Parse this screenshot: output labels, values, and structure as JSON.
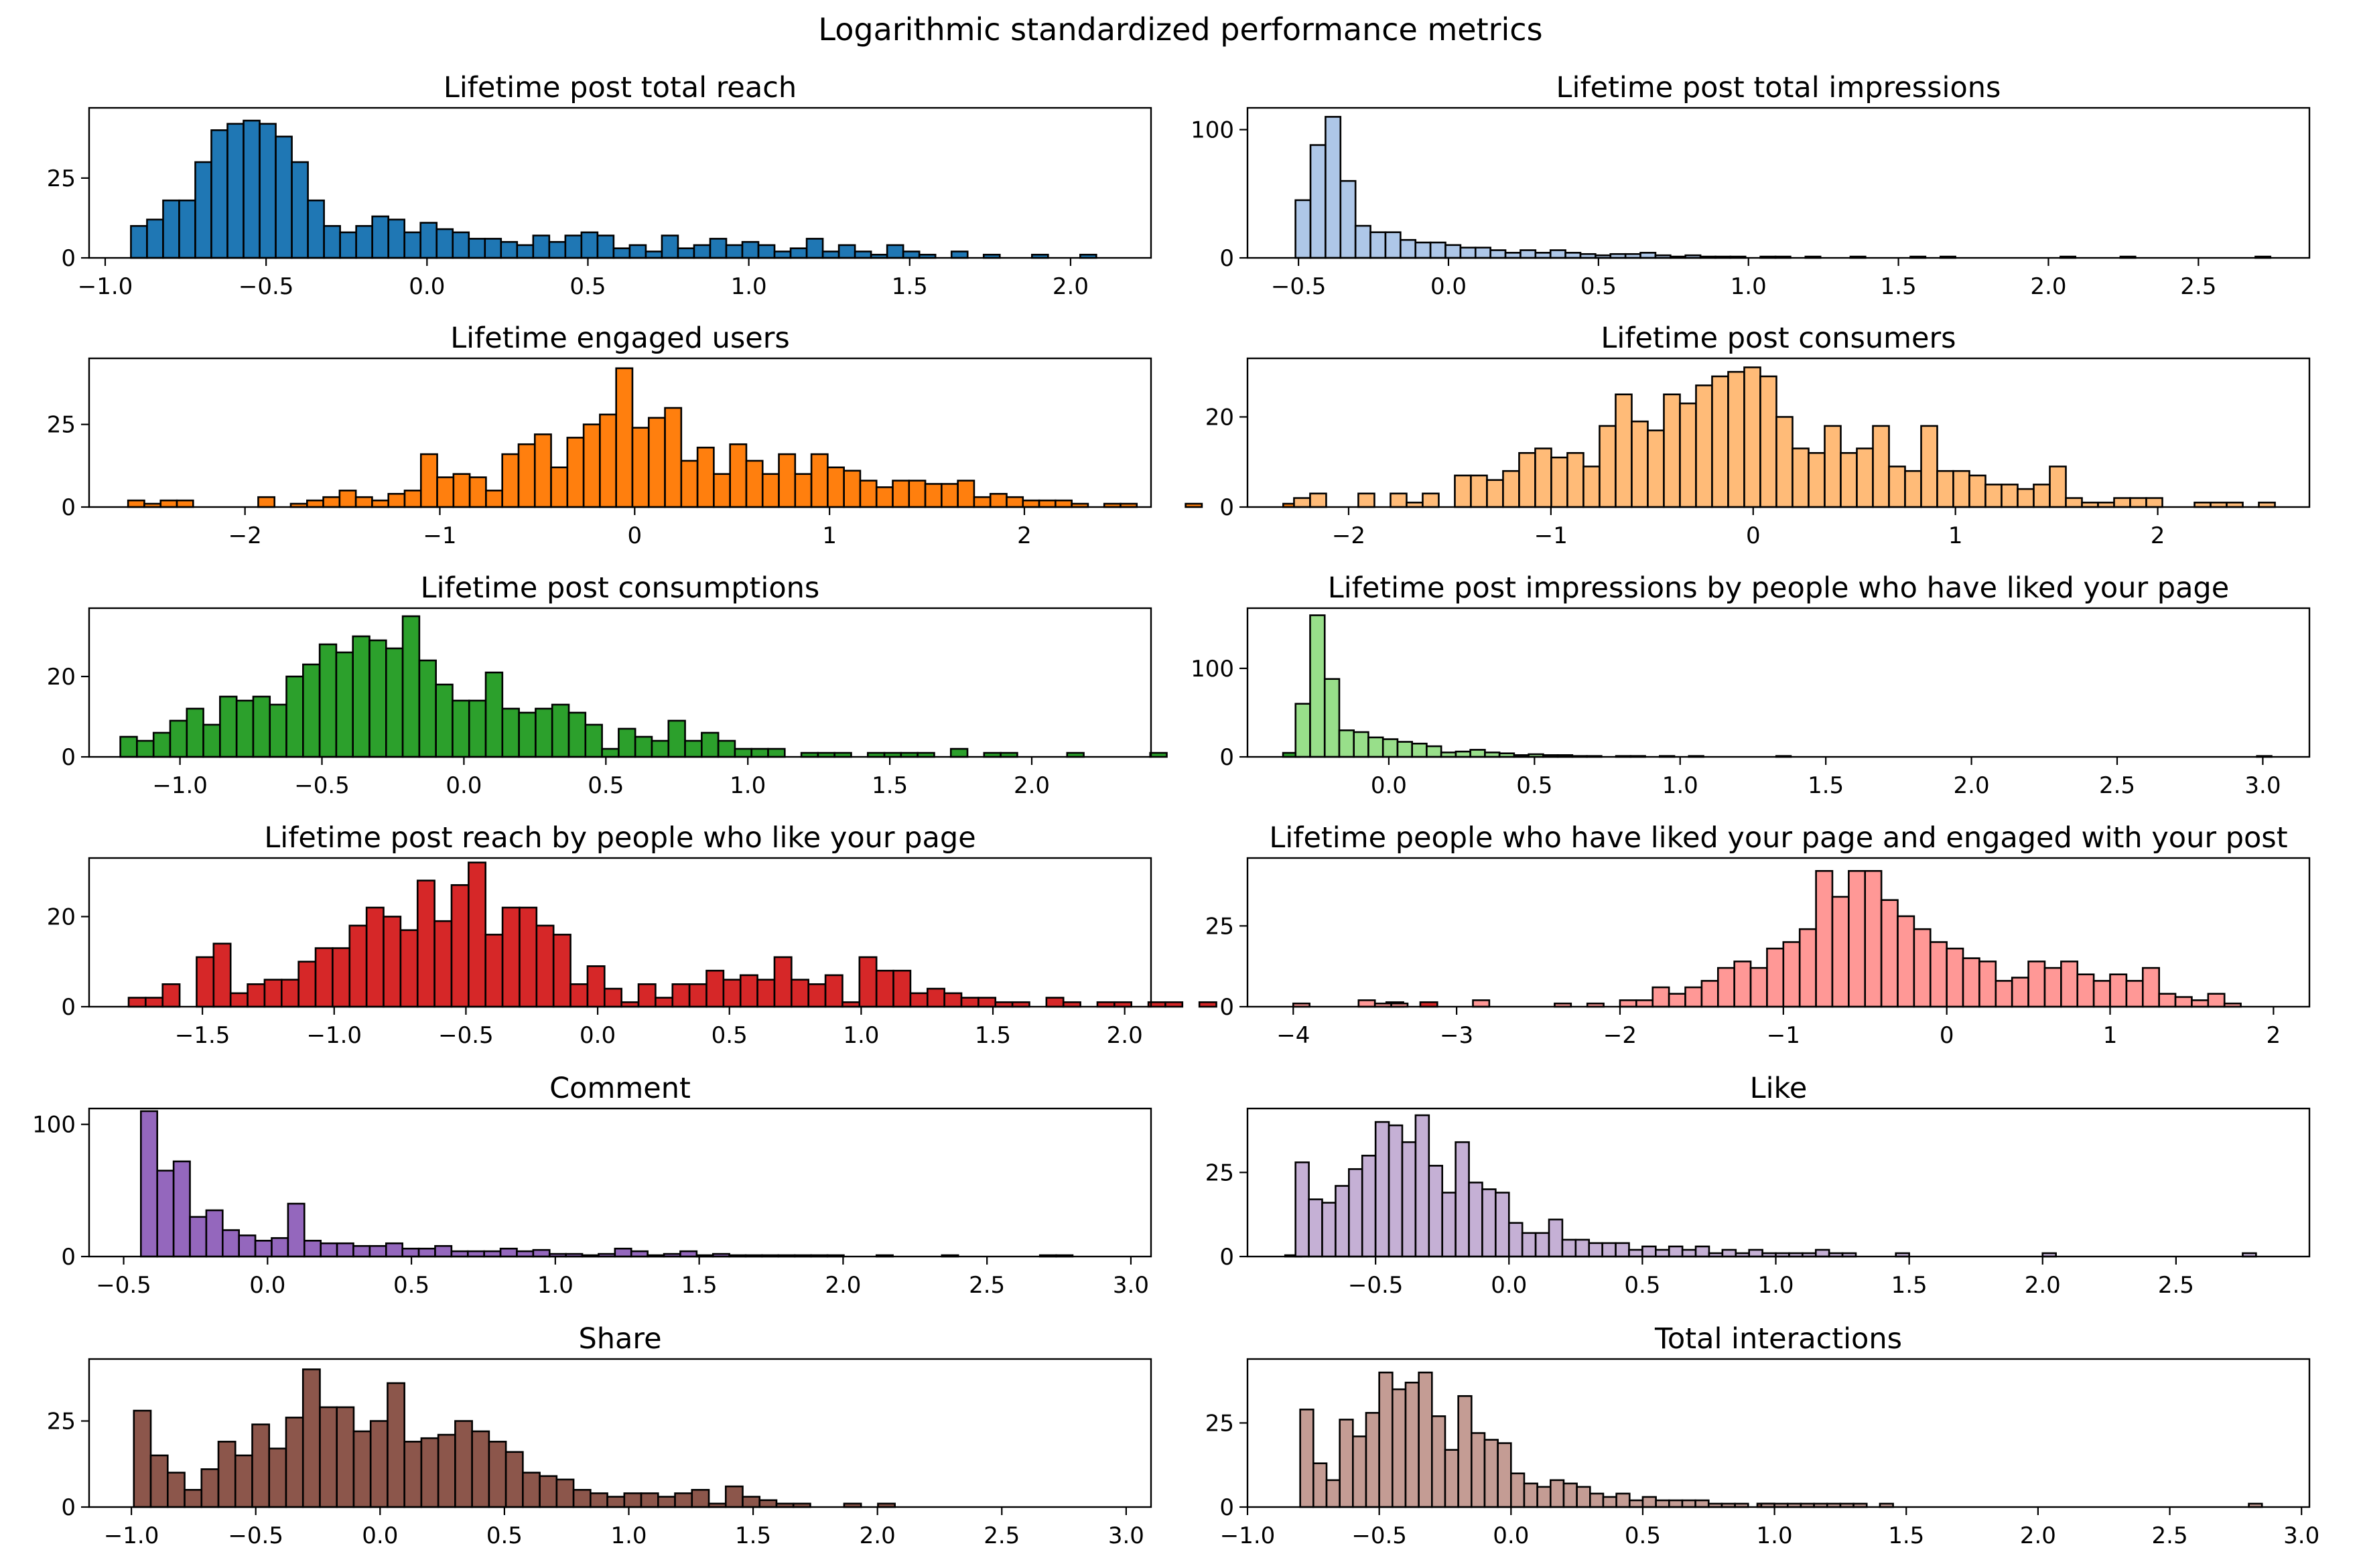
{
  "figure_title": "Logarithmic standardized performance metrics",
  "chart_data": [
    {
      "type": "bar",
      "title": "Lifetime post total reach",
      "color": "#1f77b4",
      "xlim": [
        -1.05,
        2.25
      ],
      "ylim": [
        0,
        47
      ],
      "xticks": [
        -1.0,
        -0.5,
        0.0,
        0.5,
        1.0,
        1.5,
        2.0
      ],
      "xtick_labels": [
        "−1.0",
        "−0.5",
        "0.0",
        "0.5",
        "1.0",
        "1.5",
        "2.0"
      ],
      "yticks": [
        0,
        25
      ],
      "ytick_labels": [
        "0",
        "25"
      ],
      "bin_start": -0.92,
      "bin_width": 0.05,
      "values": [
        10,
        12,
        18,
        18,
        30,
        40,
        42,
        43,
        42,
        38,
        30,
        18,
        10,
        8,
        10,
        13,
        12,
        8,
        11,
        9,
        8,
        6,
        6,
        5,
        4,
        7,
        5,
        7,
        8,
        7,
        3,
        4,
        2,
        7,
        3,
        4,
        6,
        4,
        5,
        4,
        2,
        3,
        6,
        2,
        4,
        2,
        1,
        4,
        2,
        1,
        0,
        2,
        0,
        1,
        0,
        0,
        1,
        0,
        0,
        1
      ]
    },
    {
      "type": "bar",
      "title": "Lifetime post total impressions",
      "color": "#aec7e8",
      "xlim": [
        -0.67,
        2.87
      ],
      "ylim": [
        0,
        117
      ],
      "xticks": [
        -0.5,
        0.0,
        0.5,
        1.0,
        1.5,
        2.0,
        2.5
      ],
      "xtick_labels": [
        "−0.5",
        "0.0",
        "0.5",
        "1.0",
        "1.5",
        "2.0",
        "2.5"
      ],
      "yticks": [
        0,
        100
      ],
      "ytick_labels": [
        "0",
        "100"
      ],
      "bin_start": -0.51,
      "bin_width": 0.05,
      "values": [
        45,
        88,
        110,
        60,
        25,
        20,
        20,
        14,
        12,
        12,
        10,
        8,
        8,
        6,
        4,
        6,
        4,
        6,
        4,
        3,
        2,
        3,
        3,
        4,
        2,
        1,
        2,
        1,
        1,
        1,
        0,
        1,
        1,
        0,
        1,
        0,
        0,
        1,
        0,
        0,
        0,
        1,
        0,
        1,
        0,
        0,
        0,
        0,
        0,
        0,
        0,
        1,
        0,
        0,
        0,
        1,
        0,
        0,
        0,
        0,
        0,
        0,
        0,
        0,
        1
      ]
    },
    {
      "type": "bar",
      "title": "Lifetime engaged users",
      "color": "#ff7f0e",
      "xlim": [
        -2.8,
        2.65
      ],
      "ylim": [
        0,
        45
      ],
      "xticks": [
        -2,
        -1,
        0,
        1,
        2
      ],
      "xtick_labels": [
        "−2",
        "−1",
        "0",
        "1",
        "2"
      ],
      "yticks": [
        0,
        25
      ],
      "ytick_labels": [
        "0",
        "25"
      ],
      "bin_start": -2.6,
      "bin_width": 0.0835,
      "values": [
        2,
        1,
        2,
        2,
        0,
        0,
        0,
        0,
        3,
        0,
        1,
        2,
        3,
        5,
        3,
        2,
        4,
        5,
        16,
        9,
        10,
        9,
        5,
        16,
        19,
        22,
        12,
        21,
        25,
        28,
        42,
        24,
        27,
        30,
        14,
        18,
        10,
        19,
        14,
        10,
        16,
        10,
        16,
        12,
        11,
        8,
        6,
        8,
        8,
        7,
        7,
        8,
        3,
        4,
        3,
        2,
        2,
        2,
        1,
        0,
        1,
        1,
        0,
        0,
        0,
        1,
        0,
        0,
        0,
        0,
        0,
        1
      ]
    },
    {
      "type": "bar",
      "title": "Lifetime post consumers",
      "color": "#ffbb78",
      "xlim": [
        -2.5,
        2.75
      ],
      "ylim": [
        0,
        33
      ],
      "xticks": [
        -2,
        -1,
        0,
        1,
        2
      ],
      "xtick_labels": [
        "−2",
        "−1",
        "0",
        "1",
        "2"
      ],
      "yticks": [
        0,
        20
      ],
      "ytick_labels": [
        "0",
        "20"
      ],
      "bin_start": -2.27,
      "bin_width": 0.0795,
      "values": [
        2,
        3,
        0,
        0,
        3,
        0,
        3,
        1,
        3,
        0,
        7,
        7,
        6,
        8,
        12,
        13,
        11,
        12,
        9,
        18,
        25,
        19,
        17,
        25,
        23,
        27,
        29,
        30,
        31,
        29,
        20,
        13,
        12,
        18,
        12,
        13,
        18,
        9,
        8,
        18,
        8,
        8,
        7,
        5,
        5,
        4,
        5,
        9,
        2,
        1,
        1,
        2,
        2,
        2,
        0,
        0,
        1,
        1,
        1,
        0,
        1,
        0,
        0,
        0,
        0,
        0,
        0,
        0,
        0,
        0,
        0,
        0,
        0,
        0,
        0,
        0,
        0,
        0,
        0,
        0,
        0,
        0,
        1
      ]
    },
    {
      "type": "bar",
      "title": "Lifetime post consumptions",
      "color": "#2ca02c",
      "xlim": [
        -1.32,
        2.42
      ],
      "ylim": [
        0,
        37
      ],
      "xticks": [
        -1.0,
        -0.5,
        0.0,
        0.5,
        1.0,
        1.5,
        2.0
      ],
      "xtick_labels": [
        "−1.0",
        "−0.5",
        "0.0",
        "0.5",
        "1.0",
        "1.5",
        "2.0"
      ],
      "yticks": [
        0,
        20
      ],
      "ytick_labels": [
        "0",
        "20"
      ],
      "bin_start": -1.21,
      "bin_width": 0.0585,
      "values": [
        5,
        4,
        6,
        9,
        12,
        8,
        15,
        14,
        15,
        13,
        20,
        23,
        28,
        26,
        30,
        29,
        27,
        35,
        24,
        18,
        14,
        14,
        21,
        12,
        11,
        12,
        13,
        11,
        8,
        2,
        7,
        5,
        4,
        9,
        4,
        6,
        4,
        2,
        2,
        2,
        0,
        1,
        1,
        1,
        0,
        1,
        1,
        1,
        1,
        0,
        2,
        0,
        1,
        1,
        0,
        0,
        0,
        1,
        0,
        0,
        0,
        0,
        1,
        0,
        0,
        0,
        0,
        0,
        0,
        0,
        1
      ]
    },
    {
      "type": "bar",
      "title": "Lifetime post impressions by people who have liked your page",
      "color": "#98df8a",
      "xlim": [
        -0.485,
        3.16
      ],
      "ylim": [
        0,
        168
      ],
      "xticks": [
        0.0,
        0.5,
        1.0,
        1.5,
        2.0,
        2.5,
        3.0
      ],
      "xtick_labels": [
        "0.0",
        "0.5",
        "1.0",
        "1.5",
        "2.0",
        "2.5",
        "3.0"
      ],
      "yticks": [
        0,
        100
      ],
      "ytick_labels": [
        "0",
        "100"
      ],
      "bin_start": -0.32,
      "bin_width": 0.05,
      "values": [
        60,
        160,
        88,
        30,
        28,
        22,
        20,
        17,
        15,
        12,
        5,
        6,
        8,
        5,
        4,
        2,
        3,
        2,
        2,
        1,
        1,
        0,
        1,
        1,
        0,
        1,
        0,
        1,
        0,
        0,
        0,
        0,
        0,
        1,
        0,
        0,
        0,
        0,
        0,
        0,
        0,
        0,
        0,
        0,
        0,
        0,
        0,
        0,
        0,
        0,
        0,
        0,
        0,
        0,
        0,
        0,
        0,
        0,
        0,
        0,
        0,
        0,
        0,
        0,
        0,
        0,
        1
      ]
    },
    {
      "type": "bar",
      "title": "Lifetime post reach by people who like your page",
      "color": "#d62728",
      "xlim": [
        -1.93,
        2.1
      ],
      "ylim": [
        0,
        33
      ],
      "xticks": [
        -1.5,
        -1.0,
        -0.5,
        0.0,
        0.5,
        1.0,
        1.5,
        2.0
      ],
      "xtick_labels": [
        "−1.5",
        "−1.0",
        "−0.5",
        "0.0",
        "0.5",
        "1.0",
        "1.5",
        "2.0"
      ],
      "yticks": [
        0,
        20
      ],
      "ytick_labels": [
        "0",
        "20"
      ],
      "bin_start": -1.78,
      "bin_width": 0.0645,
      "values": [
        2,
        2,
        5,
        0,
        11,
        14,
        3,
        5,
        6,
        6,
        10,
        13,
        13,
        18,
        22,
        20,
        17,
        28,
        19,
        27,
        32,
        16,
        22,
        22,
        18,
        16,
        5,
        9,
        4,
        1,
        5,
        2,
        5,
        5,
        8,
        6,
        7,
        6,
        11,
        6,
        5,
        7,
        1,
        11,
        8,
        8,
        3,
        4,
        3,
        2,
        2,
        1,
        1,
        0,
        2,
        1,
        0,
        1,
        1,
        0,
        1,
        1,
        0,
        1,
        0,
        0,
        0,
        0,
        0,
        0,
        0,
        0,
        0,
        0,
        1,
        0,
        1
      ]
    },
    {
      "type": "bar",
      "title": "Lifetime people who have liked your page and engaged with your post",
      "color": "#ff9896",
      "xlim": [
        -4.28,
        2.22
      ],
      "ylim": [
        0,
        46
      ],
      "xticks": [
        -4,
        -3,
        -2,
        -1,
        0,
        1,
        2
      ],
      "xtick_labels": [
        "−4",
        "−3",
        "−2",
        "−1",
        "0",
        "1",
        "2"
      ],
      "yticks": [
        0,
        25
      ],
      "ytick_labels": [
        "0",
        "25"
      ],
      "bin_start": -4.0,
      "bin_width": 0.1,
      "values": [
        1,
        0,
        0,
        0,
        2,
        1,
        1,
        0,
        0,
        0,
        0,
        2,
        0,
        0,
        0,
        0,
        1,
        0,
        1,
        0,
        2,
        2,
        6,
        4,
        6,
        8,
        12,
        14,
        12,
        18,
        20,
        24,
        42,
        34,
        42,
        42,
        33,
        28,
        24,
        20,
        18,
        15,
        14,
        8,
        9,
        14,
        12,
        14,
        10,
        8,
        10,
        8,
        12,
        4,
        3,
        2,
        4,
        1,
        0,
        0,
        0,
        0,
        0,
        0,
        0,
        0,
        0,
        0,
        0,
        0,
        0,
        0,
        0,
        0,
        0,
        0,
        0,
        0,
        0,
        0,
        2,
        0,
        5,
        2,
        0,
        1,
        0,
        0,
        0,
        0,
        0,
        2
      ]
    },
    {
      "type": "bar",
      "title": "Comment",
      "color": "#9467bd",
      "xlim": [
        -0.62,
        3.07
      ],
      "ylim": [
        0,
        112
      ],
      "xticks": [
        -0.5,
        0.0,
        0.5,
        1.0,
        1.5,
        2.0,
        2.5,
        3.0
      ],
      "xtick_labels": [
        "−0.5",
        "0.0",
        "0.5",
        "1.0",
        "1.5",
        "2.0",
        "2.5",
        "3.0"
      ],
      "yticks": [
        0,
        100
      ],
      "ytick_labels": [
        "0",
        "100"
      ],
      "bin_start": -0.44,
      "bin_width": 0.0568,
      "values": [
        110,
        65,
        72,
        30,
        35,
        20,
        16,
        12,
        14,
        40,
        12,
        10,
        10,
        8,
        8,
        10,
        6,
        6,
        8,
        4,
        4,
        4,
        6,
        4,
        5,
        2,
        2,
        1,
        2,
        6,
        4,
        1,
        2,
        4,
        1,
        2,
        1,
        1,
        1,
        1,
        1,
        1,
        1,
        0,
        0,
        1,
        0,
        0,
        0,
        1,
        0,
        0,
        0,
        0,
        0,
        1,
        1,
        0,
        0,
        0,
        0,
        0,
        0,
        0,
        0,
        0,
        0,
        0,
        0,
        0,
        1,
        0,
        0,
        0,
        1
      ]
    },
    {
      "type": "bar",
      "title": "Like",
      "color": "#c5b0d5",
      "xlim": [
        -0.98,
        3.0
      ],
      "ylim": [
        0,
        44
      ],
      "xticks": [
        -0.5,
        0.0,
        0.5,
        1.0,
        1.5,
        2.0,
        2.5
      ],
      "xtick_labels": [
        "−0.5",
        "0.0",
        "0.5",
        "1.0",
        "1.5",
        "2.0",
        "2.5"
      ],
      "yticks": [
        0,
        25
      ],
      "ytick_labels": [
        "0",
        "25"
      ],
      "bin_start": -0.8,
      "bin_width": 0.05,
      "values": [
        28,
        17,
        16,
        21,
        26,
        30,
        40,
        39,
        34,
        42,
        27,
        19,
        34,
        22,
        20,
        19,
        10,
        7,
        7,
        11,
        5,
        5,
        4,
        4,
        4,
        2,
        3,
        2,
        3,
        2,
        3,
        1,
        2,
        1,
        2,
        1,
        1,
        1,
        1,
        2,
        1,
        1,
        0,
        0,
        0,
        1,
        0,
        0,
        0,
        0,
        0,
        0,
        0,
        0,
        0,
        0,
        1,
        0,
        0,
        0,
        0,
        0,
        0,
        0,
        0,
        0,
        0,
        0,
        0,
        0,
        0,
        1
      ]
    },
    {
      "type": "bar",
      "title": "Share",
      "color": "#8c564b",
      "xlim": [
        -1.17,
        3.1
      ],
      "ylim": [
        0,
        43
      ],
      "xticks": [
        -1.0,
        -0.5,
        0.0,
        0.5,
        1.0,
        1.5,
        2.0,
        2.5,
        3.0
      ],
      "xtick_labels": [
        "−1.0",
        "−0.5",
        "0.0",
        "0.5",
        "1.0",
        "1.5",
        "2.0",
        "2.5",
        "3.0"
      ],
      "yticks": [
        0,
        25
      ],
      "ytick_labels": [
        "0",
        "25"
      ],
      "bin_start": -0.99,
      "bin_width": 0.068,
      "values": [
        28,
        15,
        10,
        5,
        11,
        19,
        15,
        24,
        17,
        26,
        40,
        29,
        29,
        22,
        25,
        36,
        19,
        20,
        21,
        25,
        22,
        19,
        16,
        10,
        9,
        8,
        5,
        4,
        3,
        4,
        4,
        3,
        4,
        5,
        1,
        6,
        3,
        2,
        1,
        1,
        0,
        0,
        1,
        0,
        1,
        0,
        0,
        0,
        0,
        0,
        0,
        0,
        0,
        0,
        0,
        0,
        0,
        0,
        0,
        0,
        0,
        0,
        0,
        0,
        0,
        0,
        0,
        0,
        0,
        0,
        0,
        0,
        0,
        0,
        0,
        0,
        0,
        0,
        0,
        0,
        0,
        0,
        0,
        0,
        0,
        0,
        0,
        0,
        0,
        0,
        0,
        0,
        0,
        0,
        0,
        0,
        1
      ]
    },
    {
      "type": "bar",
      "title": "Total interactions",
      "color": "#c49c94",
      "xlim": [
        -1.0,
        3.03
      ],
      "ylim": [
        0,
        44
      ],
      "xticks": [
        -1.0,
        -0.5,
        0.0,
        0.5,
        1.0,
        1.5,
        2.0,
        2.5,
        3.0
      ],
      "xtick_labels": [
        "−1.0",
        "−0.5",
        "0.0",
        "0.5",
        "1.0",
        "1.5",
        "2.0",
        "2.5",
        "3.0"
      ],
      "yticks": [
        0,
        25
      ],
      "ytick_labels": [
        "0",
        "25"
      ],
      "bin_start": -0.8,
      "bin_width": 0.05,
      "values": [
        29,
        13,
        8,
        26,
        21,
        28,
        40,
        35,
        37,
        40,
        27,
        17,
        33,
        22,
        20,
        19,
        10,
        7,
        6,
        8,
        7,
        6,
        4,
        3,
        4,
        2,
        3,
        2,
        2,
        2,
        2,
        1,
        1,
        1,
        0,
        1,
        1,
        1,
        1,
        1,
        1,
        1,
        1,
        0,
        1,
        0,
        0,
        0,
        0,
        0,
        0,
        0,
        0,
        0,
        0,
        0,
        0,
        0,
        0,
        0,
        0,
        0,
        0,
        0,
        0,
        0,
        0,
        0,
        0,
        0,
        0,
        0,
        1
      ]
    }
  ]
}
